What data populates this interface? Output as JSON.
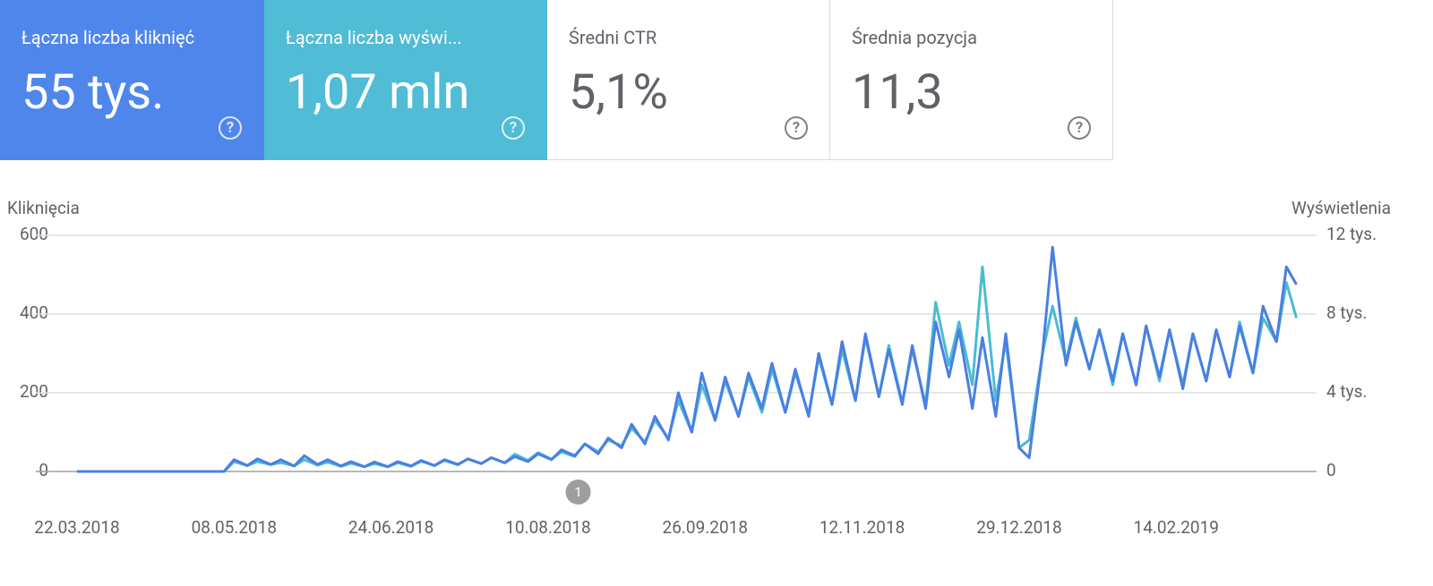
{
  "cards": [
    {
      "title": "Łączna liczba kliknięć",
      "value": "55 tys."
    },
    {
      "title": "Łączna liczba wyświ...",
      "value": "1,07 mln"
    },
    {
      "title": "Średni CTR",
      "value": "5,1%"
    },
    {
      "title": "Średnia pozycja",
      "value": "11,3"
    }
  ],
  "chart_data": {
    "type": "line",
    "y_label": "Kliknięcia",
    "y2_label": "Wyświetlenia",
    "x": [
      "2018-03-22",
      "2018-05-05",
      "2018-05-08",
      "2018-05-12",
      "2018-05-15",
      "2018-05-19",
      "2018-05-22",
      "2018-05-26",
      "2018-05-29",
      "2018-06-02",
      "2018-06-05",
      "2018-06-09",
      "2018-06-12",
      "2018-06-16",
      "2018-06-19",
      "2018-06-23",
      "2018-06-26",
      "2018-06-30",
      "2018-07-03",
      "2018-07-07",
      "2018-07-10",
      "2018-07-14",
      "2018-07-17",
      "2018-07-21",
      "2018-07-24",
      "2018-07-28",
      "2018-07-31",
      "2018-08-04",
      "2018-08-07",
      "2018-08-11",
      "2018-08-14",
      "2018-08-18",
      "2018-08-21",
      "2018-08-25",
      "2018-08-28",
      "2018-09-01",
      "2018-09-04",
      "2018-09-08",
      "2018-09-11",
      "2018-09-15",
      "2018-09-18",
      "2018-09-22",
      "2018-09-25",
      "2018-09-29",
      "2018-10-02",
      "2018-10-06",
      "2018-10-09",
      "2018-10-13",
      "2018-10-16",
      "2018-10-20",
      "2018-10-23",
      "2018-10-27",
      "2018-10-30",
      "2018-11-03",
      "2018-11-06",
      "2018-11-10",
      "2018-11-13",
      "2018-11-17",
      "2018-11-20",
      "2018-11-24",
      "2018-11-27",
      "2018-12-01",
      "2018-12-04",
      "2018-12-08",
      "2018-12-11",
      "2018-12-15",
      "2018-12-18",
      "2018-12-22",
      "2018-12-25",
      "2018-12-29",
      "2019-01-01",
      "2019-01-05",
      "2019-01-08",
      "2019-01-12",
      "2019-01-15",
      "2019-01-19",
      "2019-01-22",
      "2019-01-26",
      "2019-01-29",
      "2019-02-02",
      "2019-02-05",
      "2019-02-09",
      "2019-02-12",
      "2019-02-16",
      "2019-02-19",
      "2019-02-23",
      "2019-02-26",
      "2019-03-02",
      "2019-03-05",
      "2019-03-09",
      "2019-03-12",
      "2019-03-16",
      "2019-03-19",
      "2019-03-22"
    ],
    "series": [
      {
        "name": "Kliknięcia",
        "color": "#4a7fe3",
        "axis": "y",
        "values": [
          0,
          0,
          30,
          15,
          32,
          18,
          30,
          14,
          40,
          18,
          30,
          14,
          25,
          12,
          24,
          12,
          25,
          14,
          28,
          15,
          30,
          18,
          32,
          20,
          35,
          22,
          38,
          25,
          45,
          30,
          55,
          40,
          70,
          45,
          85,
          60,
          120,
          70,
          140,
          80,
          200,
          100,
          250,
          130,
          240,
          140,
          250,
          160,
          275,
          150,
          260,
          140,
          300,
          170,
          330,
          180,
          350,
          190,
          310,
          170,
          320,
          160,
          380,
          240,
          360,
          160,
          340,
          140,
          350,
          60,
          35,
          300,
          570,
          270,
          380,
          260,
          360,
          230,
          350,
          220,
          370,
          240,
          360,
          210,
          350,
          230,
          360,
          240,
          370,
          250,
          420,
          330,
          520,
          475
        ]
      },
      {
        "name": "Wyświetlenia",
        "color": "#4bbccf",
        "axis": "y2",
        "values": [
          0,
          0,
          500,
          300,
          500,
          350,
          450,
          280,
          600,
          320,
          480,
          260,
          420,
          240,
          400,
          240,
          440,
          260,
          520,
          300,
          560,
          340,
          640,
          400,
          700,
          440,
          880,
          560,
          960,
          620,
          1000,
          760,
          1400,
          1000,
          1600,
          1300,
          2200,
          1500,
          2600,
          1700,
          3600,
          2000,
          4400,
          2600,
          4600,
          2800,
          4800,
          3000,
          5200,
          3000,
          5000,
          2900,
          5800,
          3400,
          6200,
          3600,
          6800,
          3800,
          6400,
          3500,
          6200,
          3400,
          8600,
          5400,
          7600,
          4400,
          10400,
          3600,
          6600,
          1200,
          1600,
          6000,
          8400,
          5600,
          7800,
          5200,
          7200,
          4400,
          7000,
          4400,
          7400,
          4600,
          7200,
          4400,
          7000,
          4600,
          7200,
          4800,
          7600,
          5000,
          7800,
          6600,
          9600,
          7800
        ]
      }
    ],
    "xlim": [
      "2018-03-22",
      "2019-03-24"
    ],
    "xticks": [
      {
        "value": "2018-03-22",
        "label": "22.03.2018"
      },
      {
        "value": "2018-05-08",
        "label": "08.05.2018"
      },
      {
        "value": "2018-06-24",
        "label": "24.06.2018"
      },
      {
        "value": "2018-08-10",
        "label": "10.08.2018"
      },
      {
        "value": "2018-09-26",
        "label": "26.09.2018"
      },
      {
        "value": "2018-11-12",
        "label": "12.11.2018"
      },
      {
        "value": "2018-12-29",
        "label": "29.12.2018"
      },
      {
        "value": "2019-02-14",
        "label": "14.02.2019"
      }
    ],
    "ylim": [
      0,
      600
    ],
    "yticks": [
      0,
      200,
      400,
      600
    ],
    "y2lim": [
      0,
      12000
    ],
    "y2ticks": [
      0,
      {
        "value": 4000,
        "label": "4 tys."
      },
      {
        "value": 8000,
        "label": "8 tys."
      },
      {
        "value": 12000,
        "label": "12 tys."
      }
    ],
    "grid": true,
    "annotations": [
      {
        "date": "2018-08-19",
        "label": "1"
      }
    ]
  }
}
